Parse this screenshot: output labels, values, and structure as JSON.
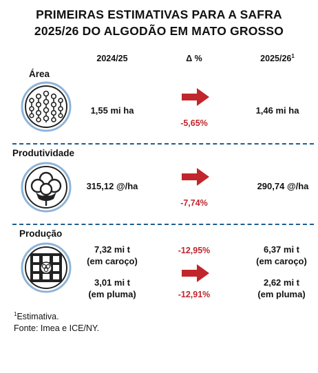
{
  "title": {
    "line1": "PRIMEIRAS ESTIMATIVAS PARA A SAFRA",
    "line2": "2025/26 DO ALGODÃO EM MATO GROSSO"
  },
  "headers": {
    "col1": "2024/25",
    "col2": "Δ %",
    "col3": "2025/26",
    "col3_note": "1"
  },
  "area": {
    "label": "Área",
    "value_2024": "1,55 mi ha",
    "change": "-5,65%",
    "value_2025": "1,46 mi ha",
    "icon": "cotton-field-icon"
  },
  "produtividade": {
    "label": "Produtividade",
    "value_2024": "315,12 @/ha",
    "change": "-7,74%",
    "value_2025": "290,74 @/ha",
    "icon": "cotton-boll-icon"
  },
  "producao": {
    "label": "Produção",
    "caroco": {
      "value_2024": "7,32 mi t",
      "qual_2024": "(em caroço)",
      "change": "-12,95%",
      "value_2025": "6,37 mi t",
      "qual_2025": "(em caroço)"
    },
    "pluma": {
      "value_2024": "3,01 mi t",
      "qual_2024": "(em pluma)",
      "change": "-12,91%",
      "value_2025": "2,62 mi t",
      "qual_2025": "(em pluma)"
    },
    "icon": "cotton-bale-icon"
  },
  "colors": {
    "accent_red": "#c0262c",
    "ring_blue": "#8db3d8",
    "divider_blue": "#1f5b8c"
  },
  "footnote": {
    "marker": "1",
    "note": "Estimativa.",
    "source": "Fonte: Imea e ICE/NY."
  }
}
